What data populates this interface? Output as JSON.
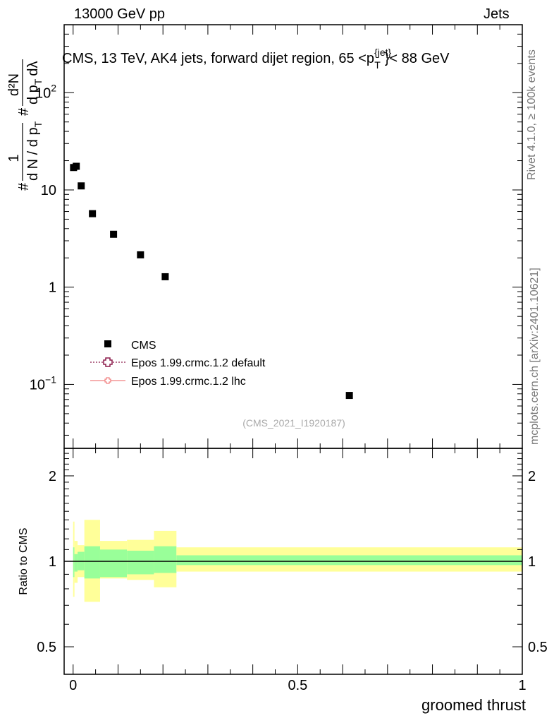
{
  "header": {
    "left": "13000 GeV pp",
    "right": "Jets"
  },
  "side_notes": {
    "rivet": "Rivet 4.1.0, ≥ 100k events",
    "mcplots": "mcplots.cern.ch [arXiv:2401.10621]"
  },
  "chart_data": [
    {
      "type": "scatter",
      "title": "CMS, 13 TeV, AK4 jets, forward dijet region, 65 <p_T^{jet}< 88 GeV",
      "title_parts": {
        "main": "CMS, 13 TeV, AK4 jets, forward dijet region, 65 <p",
        "sup": "{jet}",
        "sub": "T",
        "tail": "}< 88 GeV"
      },
      "ylabel": "1/dN/dp_T  d²N/dp_T dλ",
      "ylabel_parts": {
        "hash": "#",
        "frac1_num": "1",
        "frac1_den": "d N / d p",
        "frac1_den_sub": "T",
        "hash2": "#",
        "frac2_num": "d²N",
        "frac2_den": "d p",
        "frac2_den_sub": "T",
        "frac2_den_tail": "dλ"
      },
      "yscale": "log",
      "ylim": [
        0.022,
        500
      ],
      "xlim": [
        -0.02,
        1.0
      ],
      "y_tick_labels": [
        {
          "value": 0.1,
          "base": "10",
          "exp": "−1"
        },
        {
          "value": 1,
          "base": "1",
          "exp": ""
        },
        {
          "value": 10,
          "base": "10",
          "exp": ""
        },
        {
          "value": 100,
          "base": "10",
          "exp": "2"
        }
      ],
      "series": [
        {
          "name": "CMS",
          "marker": "square",
          "color": "#000000",
          "x": [
            0.001,
            0.007,
            0.018,
            0.043,
            0.09,
            0.15,
            0.205,
            0.615
          ],
          "y": [
            17.0,
            17.5,
            11.0,
            5.7,
            3.5,
            2.15,
            1.28,
            0.077
          ]
        }
      ],
      "legend": {
        "placement": "bottom-left",
        "entries": [
          {
            "label": "CMS",
            "style": "square",
            "color": "#000000"
          },
          {
            "label": "Epos 1.99.crmc.1.2 default",
            "style": "cross-dotted",
            "color": "#8b1a4a"
          },
          {
            "label": "Epos 1.99.crmc.1.2 lhc",
            "style": "cross-solid",
            "color": "#f08080"
          }
        ]
      },
      "watermark": "(CMS_2021_I1920187)"
    },
    {
      "type": "area",
      "ylabel": "Ratio to CMS",
      "xlabel": "groomed thrust",
      "yscale": "log",
      "ylim": [
        0.4,
        2.5
      ],
      "xlim": [
        -0.02,
        1.0
      ],
      "y_tick_labels": [
        {
          "value": 0.5,
          "label": "0.5"
        },
        {
          "value": 1,
          "label": "1"
        },
        {
          "value": 2,
          "label": "2"
        }
      ],
      "x_tick_labels": [
        {
          "value": 0,
          "label": "0"
        },
        {
          "value": 0.5,
          "label": "0.5"
        },
        {
          "value": 1,
          "label": "1"
        }
      ],
      "reference_line": 1,
      "bands": {
        "colors": {
          "stat": "#99ff99",
          "total": "#ffff99"
        },
        "bins": [
          {
            "x0": 0.0,
            "x1": 0.003,
            "inner": [
              0.88,
              1.12
            ],
            "outer": [
              0.75,
              1.38
            ]
          },
          {
            "x0": 0.003,
            "x1": 0.01,
            "inner": [
              0.92,
              1.06
            ],
            "outer": [
              0.84,
              1.18
            ]
          },
          {
            "x0": 0.01,
            "x1": 0.025,
            "inner": [
              0.93,
              1.08
            ],
            "outer": [
              0.88,
              1.14
            ]
          },
          {
            "x0": 0.025,
            "x1": 0.06,
            "inner": [
              0.87,
              1.13
            ],
            "outer": [
              0.72,
              1.4
            ]
          },
          {
            "x0": 0.06,
            "x1": 0.12,
            "inner": [
              0.88,
              1.1
            ],
            "outer": [
              0.87,
              1.18
            ]
          },
          {
            "x0": 0.12,
            "x1": 0.18,
            "inner": [
              0.9,
              1.09
            ],
            "outer": [
              0.86,
              1.19
            ]
          },
          {
            "x0": 0.18,
            "x1": 0.23,
            "inner": [
              0.91,
              1.13
            ],
            "outer": [
              0.81,
              1.28
            ]
          },
          {
            "x0": 0.23,
            "x1": 1.0,
            "inner": [
              0.97,
              1.05
            ],
            "outer": [
              0.92,
              1.12
            ]
          }
        ]
      }
    }
  ]
}
